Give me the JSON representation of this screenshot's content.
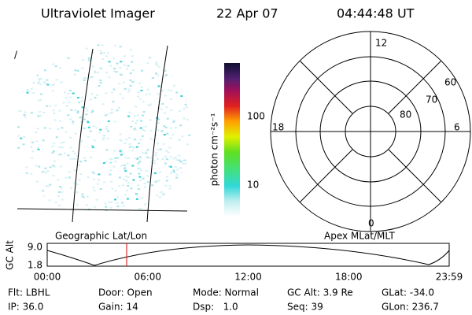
{
  "header": {
    "title": "Ultraviolet Imager",
    "date": "22 Apr 07",
    "time": "04:44:48 UT"
  },
  "image": {
    "mark": "/",
    "left_label": "Geographic Lat/Lon",
    "right_label": "Apex MLat/MLT"
  },
  "colorbar": {
    "label": "photon cm⁻²s⁻¹",
    "ticks": [
      "100",
      "10"
    ]
  },
  "polar": {
    "mlt_labels": [
      "12",
      "18",
      "6",
      "0"
    ],
    "lat_labels": [
      "60",
      "70",
      "80"
    ]
  },
  "altitude": {
    "label": "GC Alt",
    "yticks": [
      "9.0",
      "1.8"
    ],
    "xticks": [
      "00:00",
      "06:00",
      "12:00",
      "18:00",
      "23:59"
    ]
  },
  "footer": {
    "rows": [
      [
        "Flt: LBHL",
        "Door: Open",
        "Mode: Normal",
        "GC Alt: 3.9 Re",
        "GLat: -34.0"
      ],
      [
        "IP: 36.0",
        "Gain: 14",
        "Dsp:   1.0",
        "Seq: 39",
        "GLon: 236.7"
      ]
    ]
  }
}
